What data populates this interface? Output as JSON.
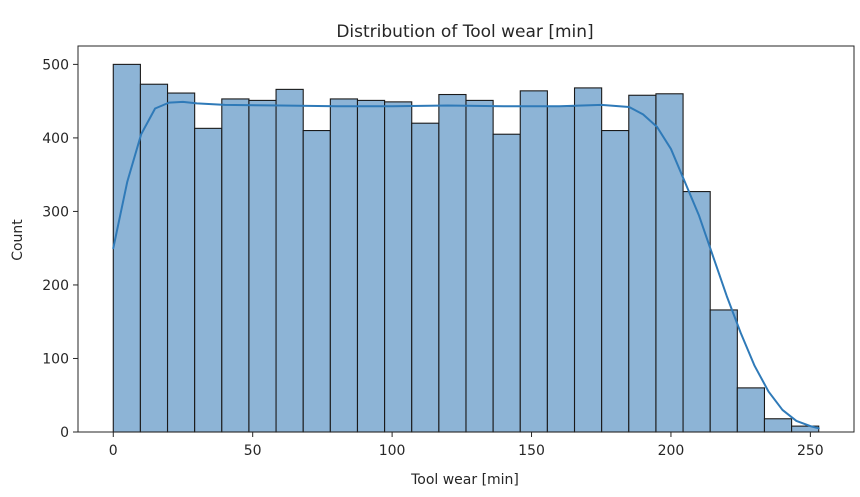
{
  "chart_data": {
    "type": "bar",
    "title": "Distribution of Tool wear [min]",
    "xlabel": "Tool wear [min]",
    "ylabel": "Count",
    "xlim": [
      -12.65,
      265.65
    ],
    "ylim": [
      0,
      525
    ],
    "xticks": [
      0,
      50,
      100,
      150,
      200,
      250
    ],
    "yticks": [
      0,
      100,
      200,
      300,
      400,
      500
    ],
    "grid": false,
    "bin_edges": [
      0,
      9.73,
      19.46,
      29.19,
      38.92,
      48.65,
      58.38,
      68.12,
      77.85,
      87.58,
      97.31,
      107.04,
      116.77,
      126.5,
      136.23,
      145.96,
      155.69,
      165.42,
      175.15,
      184.88,
      194.62,
      204.35,
      214.08,
      223.81,
      233.54,
      243.27,
      253
    ],
    "values": [
      500,
      473,
      461,
      413,
      453,
      451,
      466,
      410,
      453,
      451,
      449,
      420,
      459,
      451,
      405,
      464,
      443,
      468,
      410,
      458,
      460,
      327,
      166,
      60,
      18,
      8
    ],
    "kde": {
      "x": [
        0,
        5,
        10,
        15,
        20,
        25,
        30,
        40,
        60,
        80,
        100,
        120,
        140,
        160,
        175,
        185,
        190,
        195,
        200,
        205,
        210,
        215,
        220,
        225,
        230,
        235,
        240,
        245,
        250,
        253
      ],
      "y": [
        250,
        340,
        405,
        440,
        448,
        449,
        447,
        445,
        444,
        443,
        443,
        444,
        443,
        443,
        445,
        442,
        432,
        415,
        385,
        340,
        295,
        240,
        185,
        135,
        90,
        55,
        30,
        15,
        8,
        5
      ]
    },
    "colors": {
      "bar_fill": "#8db4d6",
      "bar_edge": "#1a1a1a",
      "kde_line": "#2f7ab8",
      "axis": "#262626"
    }
  }
}
